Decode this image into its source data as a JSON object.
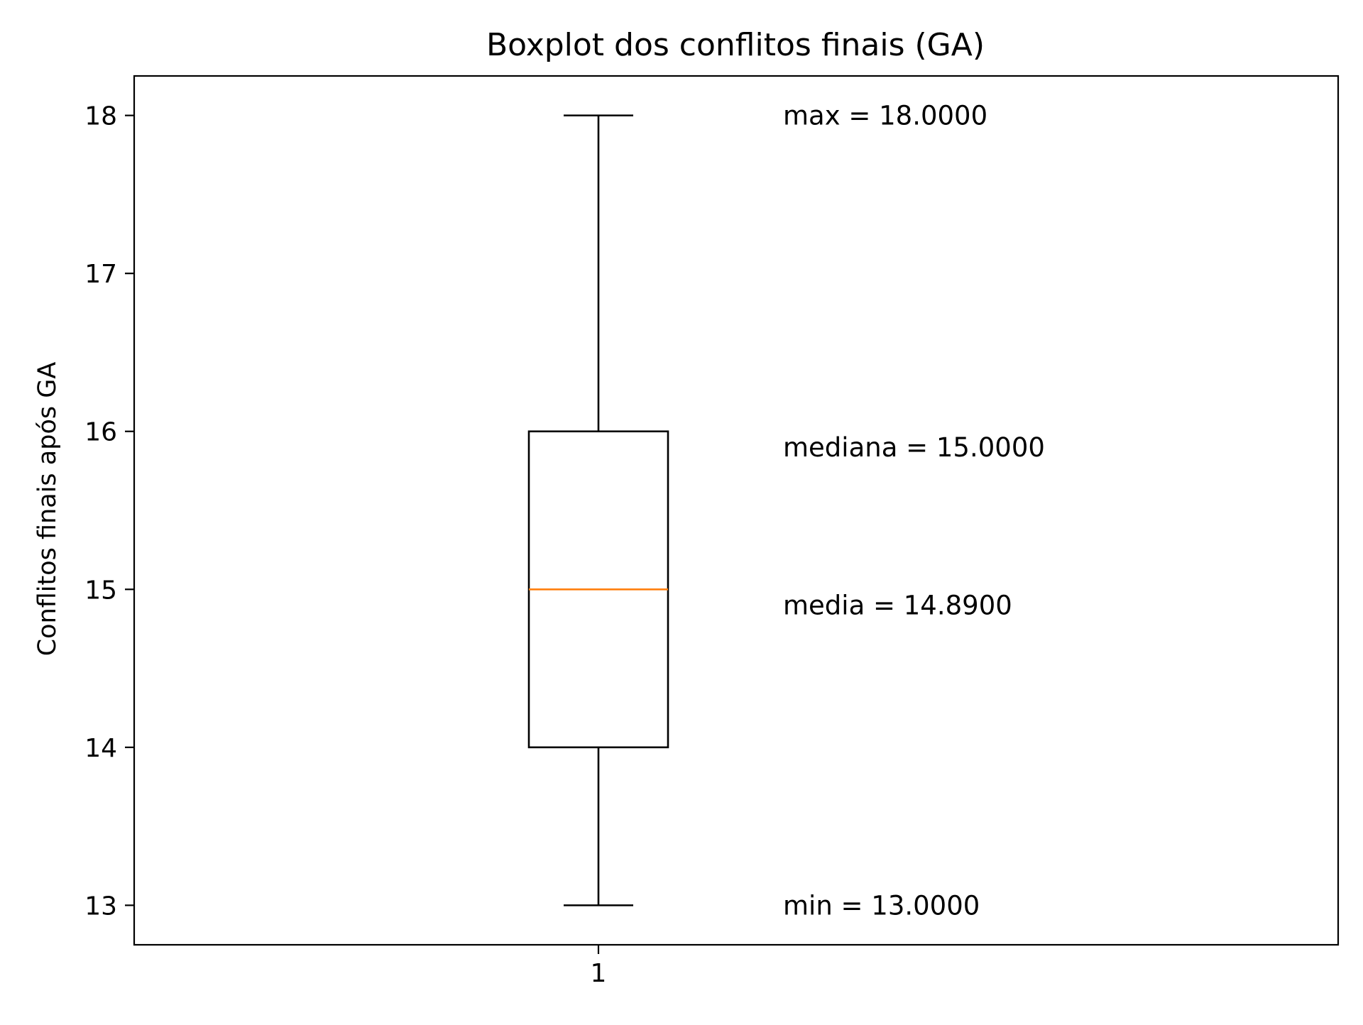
{
  "chart_data": {
    "type": "box",
    "title": "Boxplot dos conflitos finais (GA)",
    "xlabel": "",
    "ylabel": "Conflitos finais após GA",
    "categories": [
      "1"
    ],
    "ylim": [
      12.75,
      18.25
    ],
    "yticks": [
      13,
      14,
      15,
      16,
      17,
      18
    ],
    "yticklabels": [
      "13",
      "14",
      "15",
      "16",
      "17",
      "18"
    ],
    "xticklabels": [
      "1"
    ],
    "grid": false,
    "boxes": [
      {
        "category": "1",
        "whisker_low": 13,
        "q1": 14,
        "median": 15,
        "q3": 16,
        "whisker_high": 18
      }
    ],
    "annotations": [
      {
        "text": "max = 18.0000",
        "y": 18.0
      },
      {
        "text": "mediana = 15.0000",
        "y": 15.9
      },
      {
        "text": "media = 14.8900",
        "y": 14.9
      },
      {
        "text": "min = 13.0000",
        "y": 13.0
      }
    ],
    "colors": {
      "box": "#000000",
      "median": "#ff7f0e"
    }
  }
}
